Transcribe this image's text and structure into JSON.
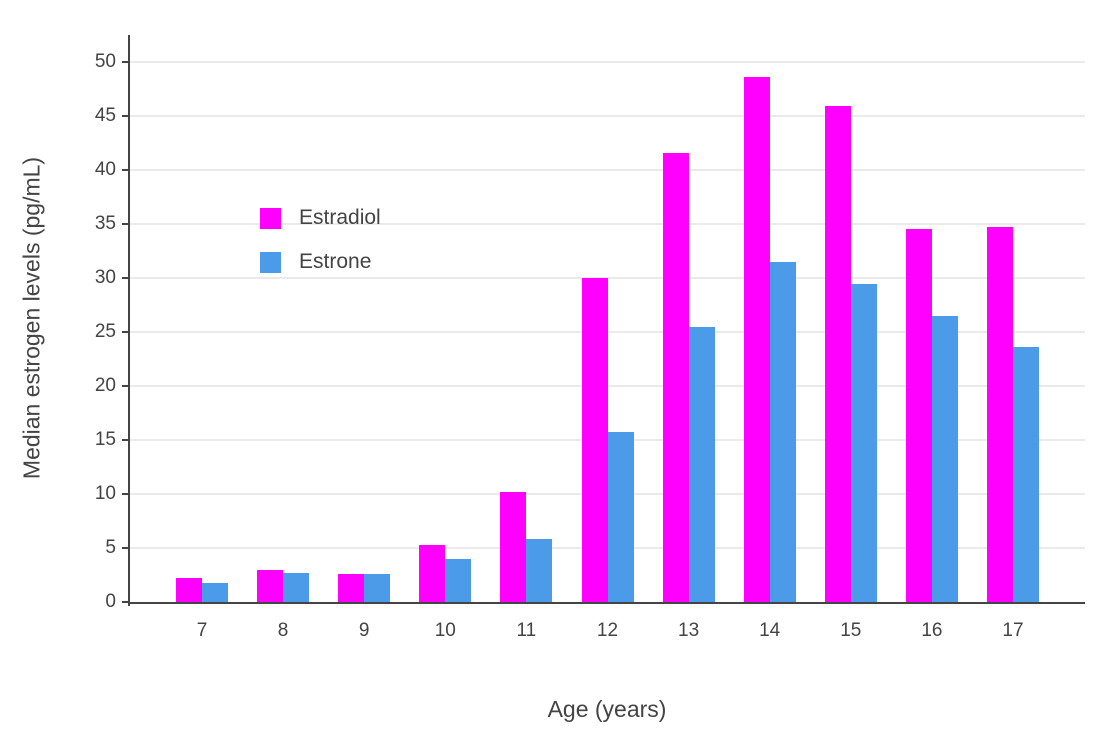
{
  "chart_data": {
    "type": "bar",
    "title": "",
    "xlabel": "Age (years)",
    "ylabel": "Median estrogen levels (pg/mL)",
    "categories": [
      "7",
      "8",
      "9",
      "10",
      "11",
      "12",
      "13",
      "14",
      "15",
      "16",
      "17"
    ],
    "series": [
      {
        "name": "Estradiol",
        "color": "#FF00FF",
        "values": [
          2.2,
          3.0,
          2.6,
          5.3,
          10.2,
          30.0,
          41.6,
          48.6,
          45.9,
          34.5,
          34.7
        ]
      },
      {
        "name": "Estrone",
        "color": "#4C9BE8",
        "values": [
          1.8,
          2.7,
          2.6,
          4.0,
          5.8,
          15.7,
          25.5,
          31.5,
          29.4,
          26.5,
          23.6
        ]
      }
    ],
    "ylim": [
      0,
      52.5
    ],
    "yticks": [
      0,
      5,
      10,
      15,
      20,
      25,
      30,
      35,
      40,
      45,
      50
    ],
    "grid": true,
    "legend_position": "inside-top-left"
  },
  "colors": {
    "background": "#ffffff",
    "axis": "#444444",
    "grid": "#eaeaea",
    "text": "#444444",
    "estradiol": "#FF00FF",
    "estrone": "#4C9BE8"
  }
}
